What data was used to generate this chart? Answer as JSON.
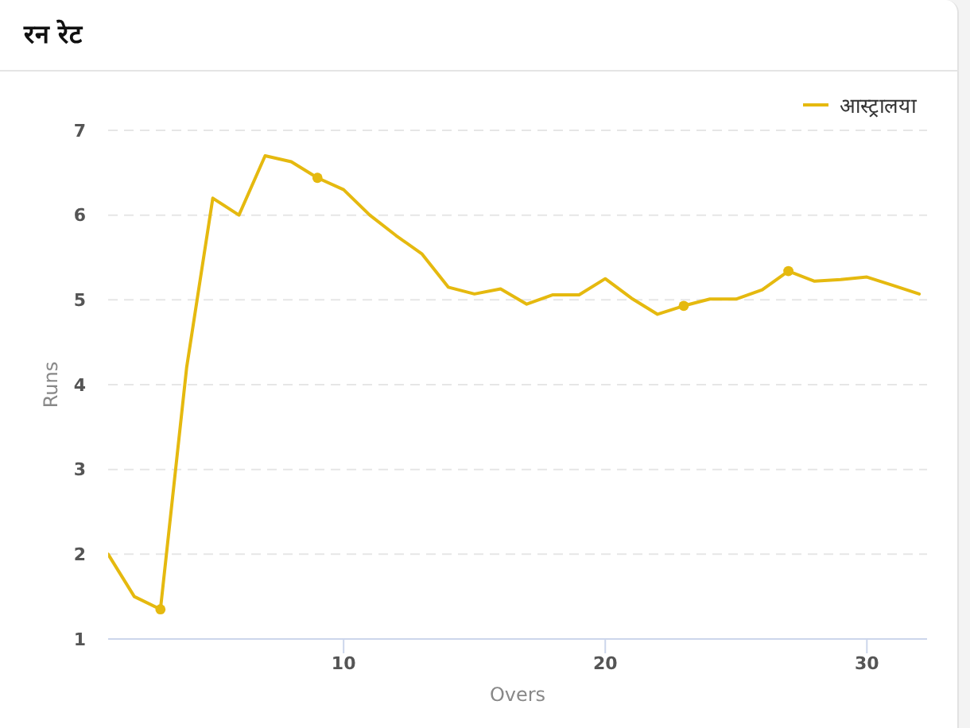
{
  "chart_data": {
    "type": "line",
    "title": "रन रेट",
    "xlabel": "Overs",
    "ylabel": "Runs",
    "x": [
      1,
      2,
      3,
      4,
      5,
      6,
      7,
      8,
      9,
      10,
      11,
      12,
      13,
      14,
      15,
      16,
      17,
      18,
      19,
      20,
      21,
      22,
      23,
      24,
      25,
      26,
      27,
      28,
      29,
      30,
      31,
      32
    ],
    "series": [
      {
        "name": "आस्ट्रालया",
        "color": "#e5b90f",
        "values": [
          2.0,
          1.5,
          1.35,
          4.2,
          6.2,
          6.0,
          6.7,
          6.63,
          6.44,
          6.3,
          6.0,
          5.76,
          5.54,
          5.15,
          5.07,
          5.13,
          4.95,
          5.06,
          5.06,
          5.25,
          5.02,
          4.83,
          4.93,
          5.01,
          5.01,
          5.12,
          5.34,
          5.22,
          5.24,
          5.27,
          5.17,
          5.07
        ]
      },
      {
        "type": "scatter",
        "color": "#e5b90f",
        "marker": "circle",
        "x": [
          3,
          9,
          23,
          27
        ],
        "values": [
          1.35,
          6.44,
          4.93,
          5.34
        ]
      }
    ],
    "xlim": [
      1,
      32.3
    ],
    "xticks": [
      10,
      20,
      30
    ],
    "ylim": [
      1,
      7
    ],
    "yticks": [
      1,
      2,
      3,
      4,
      5,
      6,
      7
    ],
    "grid": "y",
    "legend": "top right",
    "line_style": "solid"
  }
}
